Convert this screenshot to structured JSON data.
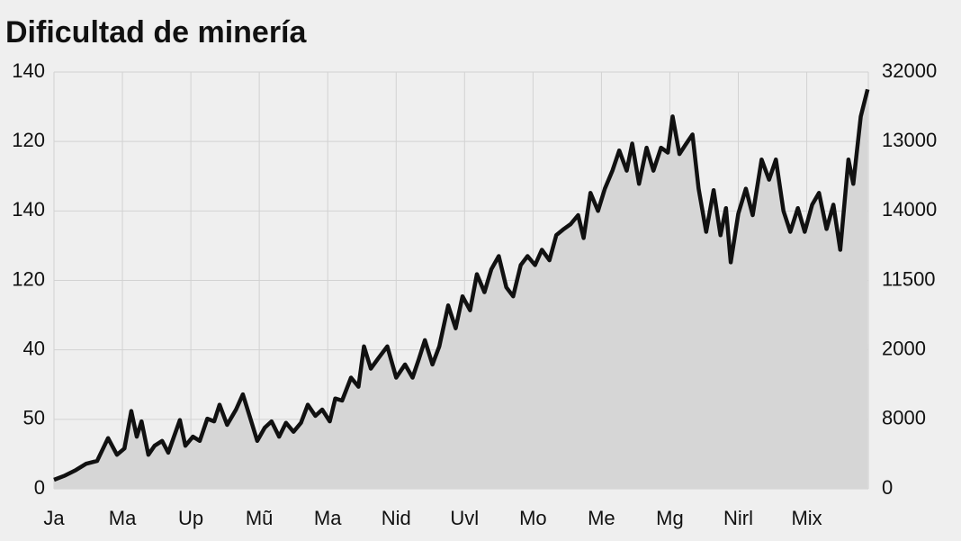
{
  "chart_data": {
    "type": "area",
    "title": "Dificultad de minería",
    "x": [
      0,
      0.16,
      0.32,
      0.47,
      0.63,
      0.79,
      0.92,
      1.03,
      1.13,
      1.21,
      1.28,
      1.38,
      1.47,
      1.58,
      1.67,
      1.84,
      1.92,
      2.03,
      2.13,
      2.24,
      2.34,
      2.42,
      2.53,
      2.66,
      2.76,
      2.87,
      2.97,
      3.08,
      3.18,
      3.29,
      3.39,
      3.5,
      3.61,
      3.71,
      3.82,
      3.92,
      4.03,
      4.11,
      4.21,
      4.34,
      4.45,
      4.53,
      4.63,
      4.74,
      4.87,
      5,
      5.13,
      5.24,
      5.33,
      5.42,
      5.53,
      5.63,
      5.76,
      5.87,
      5.97,
      6.08,
      6.18,
      6.29,
      6.39,
      6.5,
      6.61,
      6.71,
      6.82,
      6.92,
      7.03,
      7.13,
      7.24,
      7.34,
      7.45,
      7.55,
      7.66,
      7.74,
      7.84,
      7.95,
      8.05,
      8.16,
      8.26,
      8.37,
      8.45,
      8.55,
      8.66,
      8.76,
      8.87,
      8.97,
      9.04,
      9.14,
      9.24,
      9.33,
      9.42,
      9.53,
      9.64,
      9.74,
      9.82,
      9.89,
      10,
      10.11,
      10.21,
      10.34,
      10.45,
      10.55,
      10.66,
      10.76,
      10.87,
      10.97,
      11.08,
      11.18,
      11.29,
      11.39,
      11.49,
      11.61,
      11.68,
      11.79,
      11.89
    ],
    "values": [
      0.13,
      0.19,
      0.27,
      0.36,
      0.4,
      0.73,
      0.49,
      0.58,
      1.12,
      0.75,
      0.97,
      0.49,
      0.62,
      0.69,
      0.52,
      0.99,
      0.62,
      0.75,
      0.69,
      1.01,
      0.97,
      1.21,
      0.92,
      1.14,
      1.36,
      1.01,
      0.69,
      0.88,
      0.97,
      0.75,
      0.95,
      0.82,
      0.95,
      1.21,
      1.05,
      1.14,
      0.97,
      1.3,
      1.27,
      1.6,
      1.47,
      2.05,
      1.73,
      1.88,
      2.05,
      1.6,
      1.79,
      1.6,
      1.86,
      2.14,
      1.79,
      2.05,
      2.64,
      2.31,
      2.77,
      2.57,
      3.09,
      2.83,
      3.16,
      3.35,
      2.9,
      2.77,
      3.22,
      3.35,
      3.22,
      3.44,
      3.29,
      3.65,
      3.74,
      3.81,
      3.94,
      3.61,
      4.26,
      4,
      4.32,
      4.58,
      4.87,
      4.58,
      4.97,
      4.39,
      4.91,
      4.58,
      4.91,
      4.84,
      5.36,
      4.82,
      4.97,
      5.1,
      4.32,
      3.7,
      4.3,
      3.65,
      4.04,
      3.26,
      3.96,
      4.32,
      3.94,
      4.74,
      4.45,
      4.74,
      4,
      3.7,
      4.04,
      3.7,
      4.09,
      4.26,
      3.74,
      4.09,
      3.44,
      4.74,
      4.39,
      5.36,
      5.75
    ],
    "color": "#111111",
    "fill_color": "#d6d6d6",
    "xlim": [
      0,
      11.9
    ],
    "xticks": [
      {
        "value": 0,
        "label": "Ja"
      },
      {
        "value": 1,
        "label": "Ma"
      },
      {
        "value": 2,
        "label": "Up"
      },
      {
        "value": 3,
        "label": "Mũ"
      },
      {
        "value": 4,
        "label": "Ma"
      },
      {
        "value": 5,
        "label": "Nid"
      },
      {
        "value": 6,
        "label": "Uvl"
      },
      {
        "value": 7,
        "label": "Mo"
      },
      {
        "value": 8,
        "label": "Me"
      },
      {
        "value": 9,
        "label": "Mg"
      },
      {
        "value": 10,
        "label": "Nirl"
      },
      {
        "value": 11,
        "label": "Mix"
      }
    ],
    "ylim": [
      0,
      6
    ],
    "yticks": [
      0,
      {
        "value": 1,
        "label": "50"
      },
      {
        "value": 2,
        "label": "40"
      },
      {
        "value": 3,
        "label": "120"
      },
      {
        "value": 4,
        "label": "140"
      },
      {
        "value": 5,
        "label": "120"
      },
      {
        "value": 6,
        "label": "140"
      }
    ],
    "y2lim": [
      0,
      6
    ],
    "y2ticks": [
      0,
      {
        "value": 1,
        "label": "8000"
      },
      {
        "value": 2,
        "label": "2000"
      },
      {
        "value": 3,
        "label": "11500"
      },
      {
        "value": 4,
        "label": "14000"
      },
      {
        "value": 5,
        "label": "13000"
      },
      {
        "value": 6,
        "label": "32000"
      }
    ],
    "grid": true
  }
}
